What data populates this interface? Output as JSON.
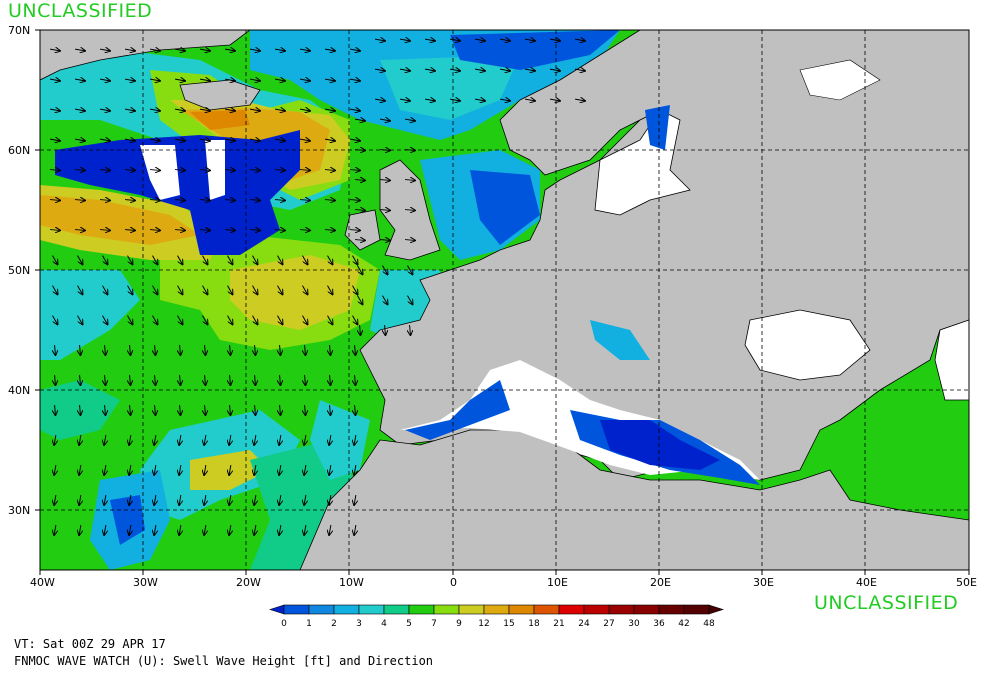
{
  "classification_top": "UNCLASSIFIED",
  "classification_bottom": "UNCLASSIFIED",
  "valid_time": "VT: Sat 00Z 29 APR 17",
  "description": "FNMOC WAVE WATCH (U): Swell Wave Height [ft] and Direction",
  "colors": {
    "land": "#c0c0c0",
    "ice_or_nodata": "#ffffff",
    "grid": "#000000"
  },
  "map": {
    "lon_range": [
      -40,
      50
    ],
    "lat_range": [
      25,
      70
    ],
    "lon_ticks": [
      "40W",
      "30W",
      "20W",
      "10W",
      "0",
      "10E",
      "20E",
      "30E",
      "40E",
      "50E"
    ],
    "lat_ticks": [
      "70N",
      "60N",
      "50N",
      "40N",
      "30N"
    ]
  },
  "legend": {
    "levels": [
      "0",
      "1",
      "2",
      "3",
      "4",
      "5",
      "7",
      "9",
      "12",
      "15",
      "18",
      "21",
      "24",
      "27",
      "30",
      "36",
      "42",
      "48"
    ],
    "colors": [
      "#0022cc",
      "#0055dd",
      "#1188e0",
      "#11b0e0",
      "#22cccc",
      "#11cc88",
      "#22cc11",
      "#88dd11",
      "#cccc22",
      "#ddaa11",
      "#dd8800",
      "#dd5500",
      "#dd0000",
      "#bb0000",
      "#990000",
      "#880000",
      "#660000",
      "#550000",
      "#440000"
    ]
  },
  "wave_regions": [
    {
      "name": "north-atlantic-south",
      "color": "#22cc11"
    },
    {
      "name": "north-atlantic-mid",
      "color": "#88dd11"
    },
    {
      "name": "swell-core-yellow",
      "color": "#cccc22"
    },
    {
      "name": "swell-core-orange",
      "color": "#ddaa11"
    },
    {
      "name": "swell-core-darkorange",
      "color": "#dd8800"
    },
    {
      "name": "north-sea-cyan",
      "color": "#11b0e0"
    },
    {
      "name": "norwegian-sea-cyan",
      "color": "#22cccc"
    },
    {
      "name": "mediterranean-blue",
      "color": "#0055dd"
    },
    {
      "name": "low-swell-blue",
      "color": "#0022cc"
    },
    {
      "name": "ice-white",
      "color": "#ffffff"
    }
  ]
}
